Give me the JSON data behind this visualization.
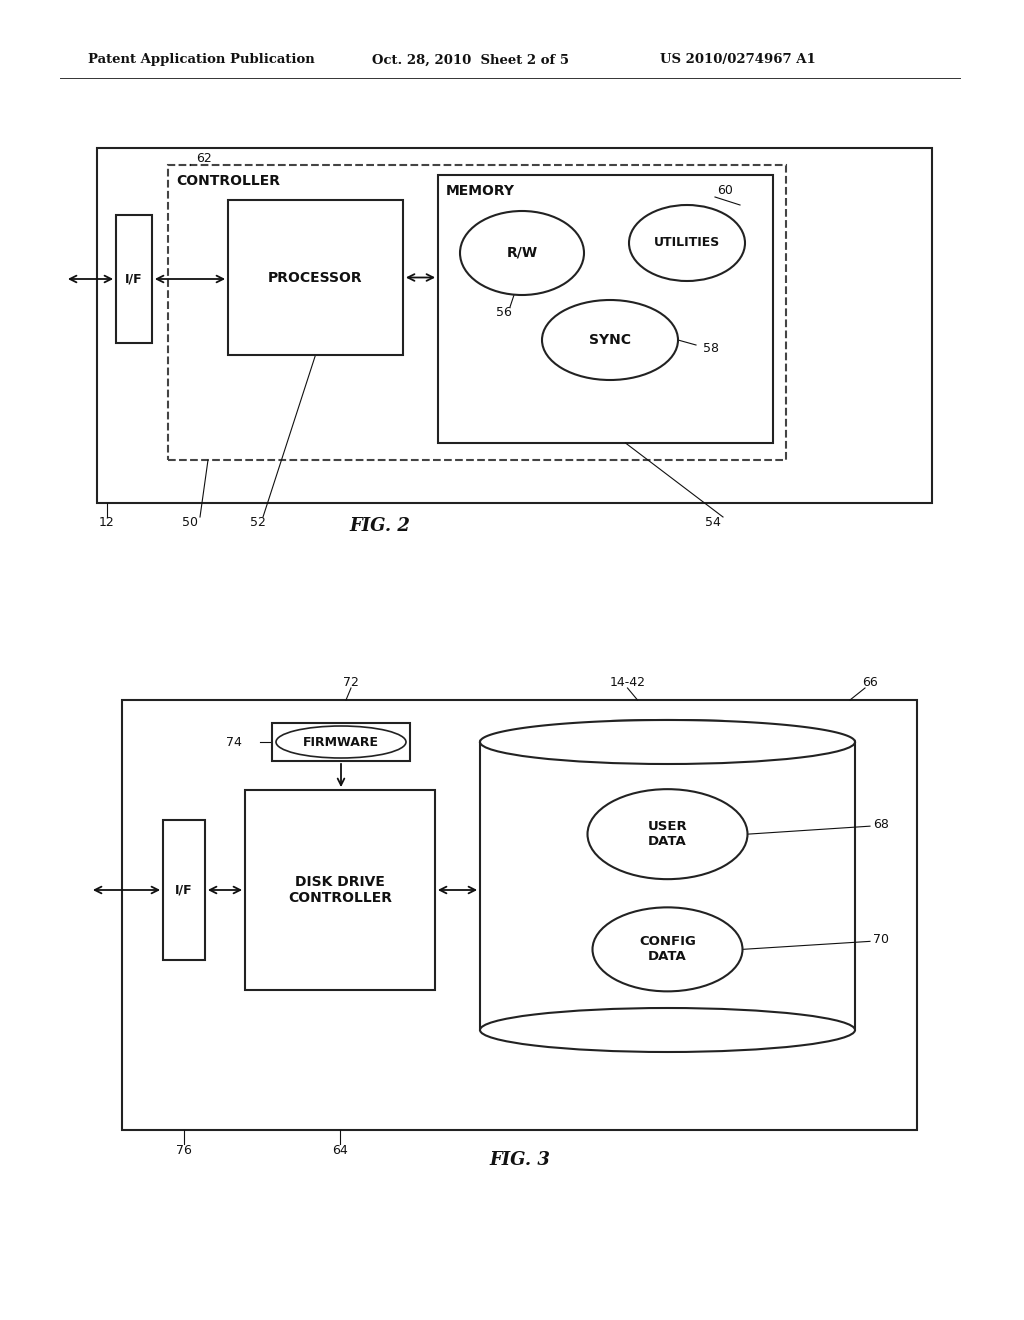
{
  "bg_color": "#ffffff",
  "header_left": "Patent Application Publication",
  "header_mid": "Oct. 28, 2010  Sheet 2 of 5",
  "header_right": "US 2010/0274967 A1",
  "fig2_label": "FIG. 2",
  "fig3_label": "FIG. 3",
  "fig2_numbers": {
    "n62": "62",
    "n12": "12",
    "n50": "50",
    "n52": "52",
    "n54": "54",
    "n56": "56",
    "n58": "58",
    "n60": "60"
  },
  "fig3_numbers": {
    "n72": "72",
    "n14_42": "14-42",
    "n66": "66",
    "n74": "74",
    "n76": "76",
    "n64": "64",
    "n68": "68",
    "n70": "70"
  },
  "controller_label": "CONTROLLER",
  "memory_label": "MEMORY",
  "processor_label": "PROCESSOR",
  "if_label": "I/F",
  "rw_label": "R/W",
  "utilities_label": "UTILITIES",
  "sync_label": "SYNC",
  "firmware_label": "FIRMWARE",
  "disk_ctrl_label": "DISK DRIVE\nCONTROLLER",
  "if2_label": "I/F",
  "user_data_label": "USER\nDATA",
  "config_data_label": "CONFIG\nDATA"
}
